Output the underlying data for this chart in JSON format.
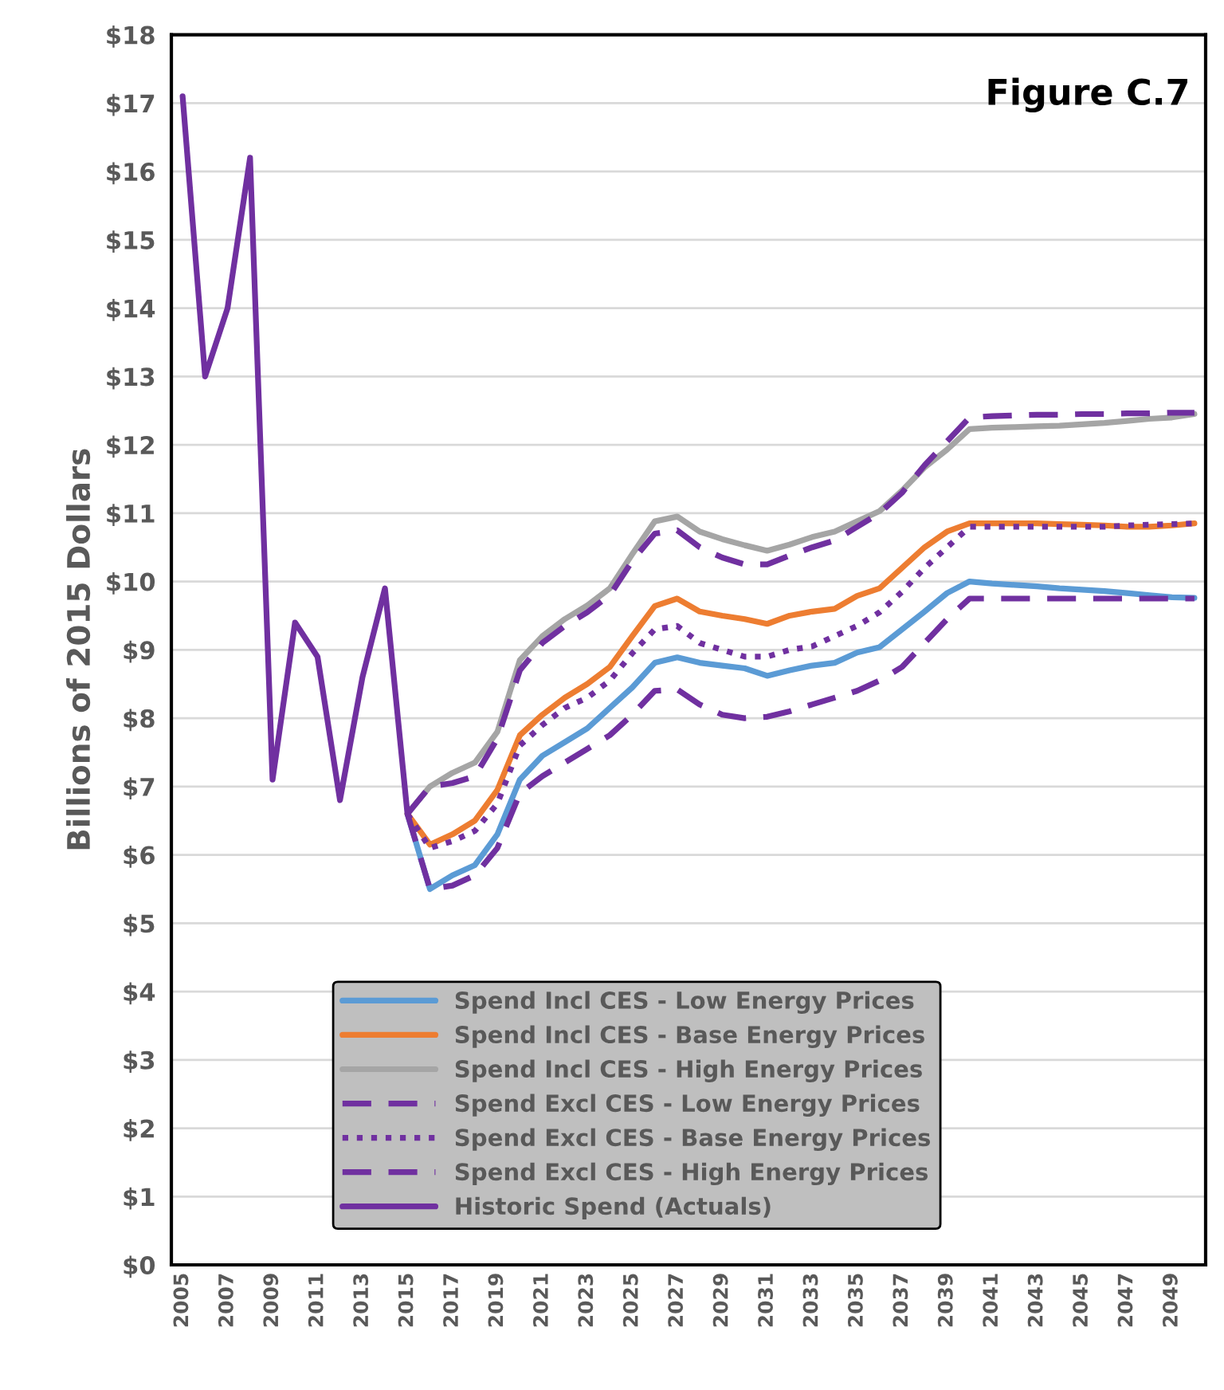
{
  "chart_data": {
    "type": "line",
    "ylabel": "Billions of 2015 Dollars",
    "annotations": [
      "Figure C.7"
    ],
    "categories": [
      "2005",
      null,
      "2007",
      null,
      "2009",
      null,
      "2011",
      null,
      "2013",
      null,
      "2015",
      null,
      "2017",
      null,
      "2019",
      null,
      "2021",
      null,
      "2023",
      null,
      "2025",
      null,
      "2027",
      null,
      "2029",
      null,
      "2031",
      null,
      "2033",
      null,
      "2035",
      null,
      "2037",
      null,
      "2039",
      null,
      "2041",
      null,
      "2043",
      null,
      "2045",
      null,
      "2047",
      null,
      "2049",
      null
    ],
    "ylim": [
      0,
      18
    ],
    "yticks": [
      {
        "value": 0,
        "label": "$0"
      },
      {
        "value": 1,
        "label": "$1"
      },
      {
        "value": 2,
        "label": "$2"
      },
      {
        "value": 3,
        "label": "$3"
      },
      {
        "value": 4,
        "label": "$4"
      },
      {
        "value": 5,
        "label": "$5"
      },
      {
        "value": 6,
        "label": "$6"
      },
      {
        "value": 7,
        "label": "$7"
      },
      {
        "value": 8,
        "label": "$8"
      },
      {
        "value": 9,
        "label": "$9"
      },
      {
        "value": 10,
        "label": "$10"
      },
      {
        "value": 11,
        "label": "$11"
      },
      {
        "value": 12,
        "label": "$12"
      },
      {
        "value": 13,
        "label": "$13"
      },
      {
        "value": 14,
        "label": "$14"
      },
      {
        "value": 15,
        "label": "$15"
      },
      {
        "value": 16,
        "label": "$16"
      },
      {
        "value": 17,
        "label": "$17"
      },
      {
        "value": 18,
        "label": "$18"
      }
    ],
    "grid": "y",
    "legend": "bottom",
    "series": [
      {
        "name": "Spend Incl CES - Low Energy Prices",
        "color": "#5b9bd5",
        "line_style": "solid",
        "values": [
          null,
          null,
          null,
          null,
          null,
          null,
          null,
          null,
          null,
          null,
          6.6,
          5.5,
          5.7,
          5.85,
          6.3,
          7.1,
          7.45,
          7.65,
          7.85,
          8.15,
          8.45,
          8.81,
          8.89,
          8.81,
          8.77,
          8.73,
          8.62,
          8.7,
          8.77,
          8.81,
          8.96,
          9.04,
          9.3,
          9.56,
          9.83,
          10.0,
          9.97,
          9.95,
          9.93,
          9.9,
          9.88,
          9.86,
          9.83,
          9.8,
          9.77,
          9.76
        ]
      },
      {
        "name": "Spend Incl CES - Base Energy Prices",
        "color": "#ed7d31",
        "line_style": "solid",
        "values": [
          null,
          null,
          null,
          null,
          null,
          null,
          null,
          null,
          null,
          null,
          6.6,
          6.15,
          6.3,
          6.5,
          6.95,
          7.75,
          8.05,
          8.3,
          8.5,
          8.75,
          9.2,
          9.64,
          9.75,
          9.56,
          9.5,
          9.45,
          9.38,
          9.5,
          9.56,
          9.6,
          9.79,
          9.9,
          10.2,
          10.5,
          10.73,
          10.85,
          10.85,
          10.85,
          10.85,
          10.84,
          10.83,
          10.82,
          10.8,
          10.8,
          10.82,
          10.85
        ]
      },
      {
        "name": "Spend Incl CES - High Energy Prices",
        "color": "#a5a5a5",
        "line_style": "solid",
        "values": [
          null,
          null,
          null,
          null,
          null,
          null,
          null,
          null,
          null,
          null,
          6.6,
          7.0,
          7.2,
          7.35,
          7.8,
          8.85,
          9.2,
          9.45,
          9.65,
          9.9,
          10.4,
          10.88,
          10.95,
          10.73,
          10.62,
          10.53,
          10.45,
          10.54,
          10.65,
          10.73,
          10.88,
          11.03,
          11.33,
          11.67,
          11.93,
          12.23,
          12.25,
          12.26,
          12.27,
          12.28,
          12.3,
          12.32,
          12.35,
          12.38,
          12.4,
          12.45
        ]
      },
      {
        "name": "Spend Excl CES - Low Energy Prices",
        "color": "#7030a0",
        "line_style": "dashed",
        "values": [
          null,
          null,
          null,
          null,
          null,
          null,
          null,
          null,
          null,
          null,
          6.6,
          5.5,
          5.55,
          5.7,
          6.1,
          6.9,
          7.15,
          7.35,
          7.55,
          7.75,
          8.05,
          8.4,
          8.42,
          8.2,
          8.05,
          8.0,
          8.02,
          8.1,
          8.2,
          8.3,
          8.4,
          8.55,
          8.75,
          9.1,
          9.45,
          9.75,
          9.75,
          9.75,
          9.75,
          9.75,
          9.75,
          9.75,
          9.75,
          9.75,
          9.75,
          9.75
        ]
      },
      {
        "name": "Spend Excl CES - Base Energy Prices",
        "color": "#7030a0",
        "line_style": "dotted",
        "values": [
          null,
          null,
          null,
          null,
          null,
          null,
          null,
          null,
          null,
          null,
          6.6,
          6.1,
          6.2,
          6.35,
          6.75,
          7.6,
          7.9,
          8.15,
          8.3,
          8.55,
          8.95,
          9.3,
          9.35,
          9.1,
          9.0,
          8.9,
          8.9,
          9.0,
          9.05,
          9.2,
          9.35,
          9.55,
          9.85,
          10.2,
          10.5,
          10.8,
          10.8,
          10.8,
          10.8,
          10.8,
          10.8,
          10.8,
          10.82,
          10.83,
          10.84,
          10.85
        ]
      },
      {
        "name": "Spend Excl CES - High Energy Prices",
        "color": "#7030a0",
        "line_style": "dashed",
        "values": [
          null,
          null,
          null,
          null,
          null,
          null,
          null,
          null,
          null,
          null,
          6.6,
          7.0,
          7.05,
          7.15,
          7.7,
          8.7,
          9.1,
          9.35,
          9.55,
          9.8,
          10.3,
          10.7,
          10.75,
          10.5,
          10.35,
          10.25,
          10.25,
          10.38,
          10.5,
          10.6,
          10.8,
          11.0,
          11.3,
          11.7,
          12.05,
          12.4,
          12.42,
          12.43,
          12.44,
          12.44,
          12.45,
          12.45,
          12.46,
          12.46,
          12.47,
          12.47
        ]
      },
      {
        "name": "Historic Spend (Actuals)",
        "color": "#7030a0",
        "line_style": "solid",
        "values": [
          17.1,
          13.0,
          14.0,
          16.2,
          7.1,
          9.4,
          8.9,
          6.8,
          8.6,
          9.9,
          6.6,
          null,
          null,
          null,
          null,
          null,
          null,
          null,
          null,
          null,
          null,
          null,
          null,
          null,
          null,
          null,
          null,
          null,
          null,
          null,
          null,
          null,
          null,
          null,
          null,
          null,
          null,
          null,
          null,
          null,
          null,
          null,
          null,
          null,
          null,
          null
        ]
      }
    ]
  }
}
